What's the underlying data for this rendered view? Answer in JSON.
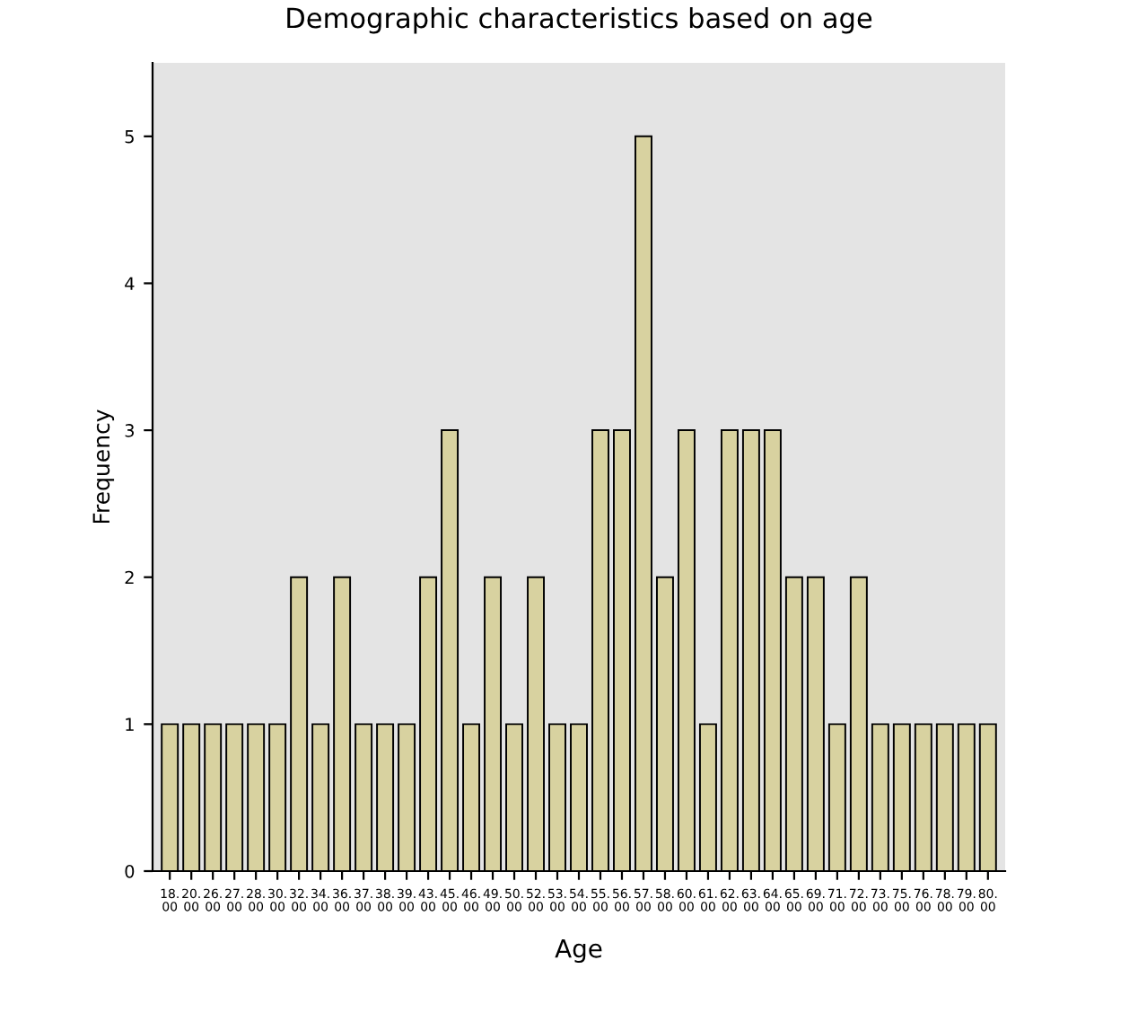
{
  "chart_data": {
    "type": "bar",
    "title": "Demographic characteristics based on age",
    "xlabel": "Age",
    "ylabel": "Frequency",
    "categories": [
      "18.00",
      "20.00",
      "26.00",
      "27.00",
      "28.00",
      "30.00",
      "32.00",
      "34.00",
      "36.00",
      "37.00",
      "38.00",
      "39.00",
      "43.00",
      "45.00",
      "46.00",
      "49.00",
      "50.00",
      "52.00",
      "53.00",
      "54.00",
      "55.00",
      "56.00",
      "57.00",
      "58.00",
      "60.00",
      "61.00",
      "62.00",
      "63.00",
      "64.00",
      "65.00",
      "69.00",
      "71.00",
      "72.00",
      "73.00",
      "75.00",
      "76.00",
      "78.00",
      "79.00",
      "80.00"
    ],
    "values": [
      1,
      1,
      1,
      1,
      1,
      1,
      2,
      1,
      2,
      1,
      1,
      1,
      2,
      3,
      1,
      2,
      1,
      2,
      1,
      1,
      3,
      3,
      5,
      2,
      3,
      1,
      3,
      3,
      3,
      2,
      2,
      1,
      2,
      1,
      1,
      1,
      1,
      1,
      1
    ],
    "color": "#d8d2a0",
    "ylim": [
      0,
      5.5
    ],
    "yticks": [
      0,
      1,
      2,
      3,
      4,
      5
    ],
    "grid": false,
    "legend": false
  }
}
